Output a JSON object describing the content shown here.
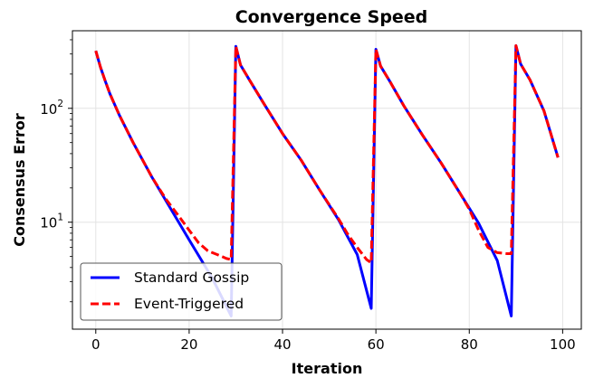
{
  "chart_data": {
    "type": "line",
    "title": "Convergence Speed",
    "xlabel": "Iteration",
    "ylabel": "Consensus Error",
    "xlim": [
      -5,
      104
    ],
    "ylim": [
      1.15,
      480
    ],
    "yscale": "log",
    "grid": true,
    "legend_position": "lower-left",
    "x_ticks": [
      0,
      20,
      40,
      60,
      80,
      100
    ],
    "y_ticks": [
      {
        "value": 10,
        "base": "10",
        "exp": "1"
      },
      {
        "value": 100,
        "base": "10",
        "exp": "2"
      }
    ],
    "series": [
      {
        "name": "Standard Gossip",
        "color": "#0000ff",
        "style": "solid",
        "points": [
          [
            0,
            320
          ],
          [
            1,
            230
          ],
          [
            2,
            175
          ],
          [
            3,
            135
          ],
          [
            5,
            88
          ],
          [
            8,
            50
          ],
          [
            12,
            25
          ],
          [
            15,
            15.5
          ],
          [
            20,
            7.0
          ],
          [
            25,
            3.2
          ],
          [
            29,
            1.5
          ],
          [
            30,
            350
          ],
          [
            31,
            240
          ],
          [
            33,
            175
          ],
          [
            36,
            110
          ],
          [
            40,
            60
          ],
          [
            44,
            35
          ],
          [
            48,
            19
          ],
          [
            52,
            10.5
          ],
          [
            56,
            5.2
          ],
          [
            59,
            1.75
          ],
          [
            60,
            330
          ],
          [
            61,
            235
          ],
          [
            63,
            172
          ],
          [
            66,
            105
          ],
          [
            70,
            58
          ],
          [
            74,
            33
          ],
          [
            78,
            18
          ],
          [
            82,
            9.8
          ],
          [
            86,
            4.6
          ],
          [
            89,
            1.5
          ],
          [
            90,
            355
          ],
          [
            91,
            245
          ],
          [
            93,
            178
          ],
          [
            96,
            95
          ],
          [
            99,
            37
          ]
        ]
      },
      {
        "name": "Event-Triggered",
        "color": "#ff0000",
        "style": "dashed",
        "points": [
          [
            0,
            320
          ],
          [
            1,
            230
          ],
          [
            2,
            175
          ],
          [
            3,
            135
          ],
          [
            5,
            88
          ],
          [
            8,
            50
          ],
          [
            12,
            25
          ],
          [
            15,
            16
          ],
          [
            18,
            11
          ],
          [
            20,
            8.5
          ],
          [
            22,
            6.6
          ],
          [
            24,
            5.6
          ],
          [
            26,
            5.2
          ],
          [
            28,
            4.8
          ],
          [
            29,
            4.7
          ],
          [
            30,
            350
          ],
          [
            31,
            240
          ],
          [
            33,
            175
          ],
          [
            36,
            110
          ],
          [
            40,
            60
          ],
          [
            44,
            35
          ],
          [
            48,
            19
          ],
          [
            52,
            10.7
          ],
          [
            54,
            7.8
          ],
          [
            56,
            6.0
          ],
          [
            58,
            4.7
          ],
          [
            59,
            4.4
          ],
          [
            60,
            330
          ],
          [
            61,
            235
          ],
          [
            63,
            172
          ],
          [
            66,
            105
          ],
          [
            70,
            58
          ],
          [
            74,
            33
          ],
          [
            78,
            18
          ],
          [
            80,
            13
          ],
          [
            82,
            8.5
          ],
          [
            84,
            6.0
          ],
          [
            86,
            5.4
          ],
          [
            88,
            5.3
          ],
          [
            89,
            5.3
          ],
          [
            90,
            355
          ],
          [
            91,
            245
          ],
          [
            93,
            178
          ],
          [
            96,
            95
          ],
          [
            99,
            37
          ]
        ]
      }
    ]
  }
}
